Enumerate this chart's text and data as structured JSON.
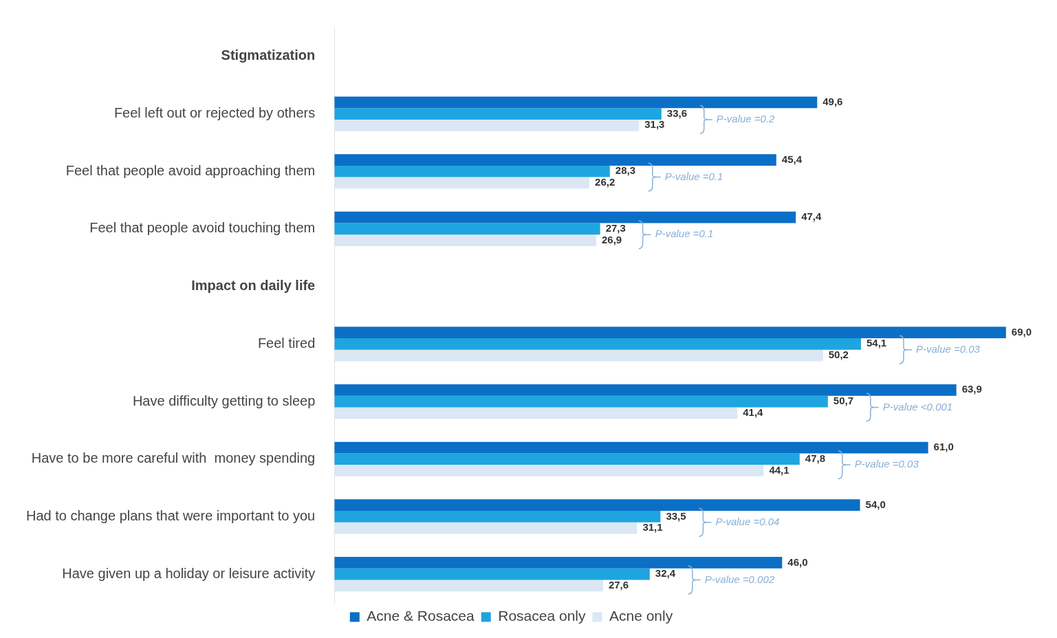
{
  "chart_data": {
    "type": "bar",
    "orientation": "horizontal",
    "legend": "bottom",
    "grid": false,
    "tick_labels": "y",
    "categories": [
      "Stigmatization",
      "Feel left out or rejected by others",
      "Feel that people avoid approaching them",
      "Feel that people avoid touching them",
      "Impact on daily life",
      "Feel tired",
      "Have difficulty getting to sleep",
      "Have to be more careful with  money spending",
      "Had to change plans that were important to you",
      "Have given up a holiday or leisure activity"
    ],
    "series": [
      {
        "name": "Acne & Rosacea",
        "color": "#0b6fc6",
        "values": [
          null,
          49.6,
          45.4,
          47.4,
          null,
          69.0,
          63.9,
          61.0,
          54.0,
          46.0
        ],
        "value_labels": [
          null,
          "49,6",
          "45,4",
          "47,4",
          null,
          "69,0",
          "63,9",
          "61,0",
          "54,0",
          "46,0"
        ]
      },
      {
        "name": "Rosacea only",
        "color": "#1ea5df",
        "values": [
          null,
          33.6,
          28.3,
          27.3,
          null,
          54.1,
          50.7,
          47.8,
          33.5,
          32.4
        ],
        "value_labels": [
          null,
          "33,6",
          "28,3",
          "27,3",
          null,
          "54,1",
          "50,7",
          "47,8",
          "33,5",
          "32,4"
        ]
      },
      {
        "name": "Acne only",
        "color": "#dbe7f4",
        "values": [
          null,
          31.3,
          26.2,
          26.9,
          null,
          50.2,
          41.4,
          44.1,
          31.1,
          27.6
        ],
        "value_labels": [
          null,
          "31,3",
          "26,2",
          "26,9",
          null,
          "50,2",
          "41,4",
          "44,1",
          "31,1",
          "27,6"
        ]
      }
    ],
    "annotations": [
      "P-value =0.2",
      "P-value =0.1",
      "P-value =0.1",
      "P-value =0.03",
      "P-value <0.001",
      "P-value =0.03",
      "P-value =0.04",
      "P-value =0.002"
    ]
  }
}
